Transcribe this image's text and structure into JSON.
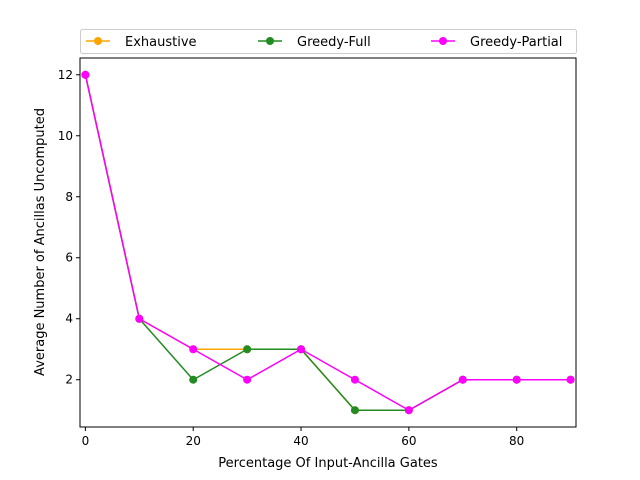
{
  "chart_data": {
    "type": "line",
    "title": "",
    "xlabel": "Percentage Of Input-Ancilla Gates",
    "ylabel": "Average Number of Ancillas Uncomputed",
    "x": [
      0,
      10,
      20,
      30,
      40,
      50,
      60,
      70,
      80,
      90
    ],
    "xlim": [
      -1,
      91
    ],
    "ylim": [
      0.45,
      12.55
    ],
    "xticks": [
      0,
      20,
      40,
      60,
      80
    ],
    "yticks": [
      2,
      4,
      6,
      8,
      10,
      12
    ],
    "grid": false,
    "legend_position": "top, above plot",
    "series": [
      {
        "name": "Exhaustive",
        "color": "#ffa500",
        "values": [
          12,
          4,
          3,
          3,
          3,
          1,
          1,
          2,
          2,
          2
        ]
      },
      {
        "name": "Greedy-Full",
        "color": "#228b22",
        "values": [
          12,
          4,
          2,
          3,
          3,
          1,
          1,
          2,
          2,
          2
        ]
      },
      {
        "name": "Greedy-Partial",
        "color": "#ff00ff",
        "values": [
          12,
          4,
          3,
          2,
          3,
          2,
          1,
          2,
          2,
          2
        ]
      }
    ]
  }
}
